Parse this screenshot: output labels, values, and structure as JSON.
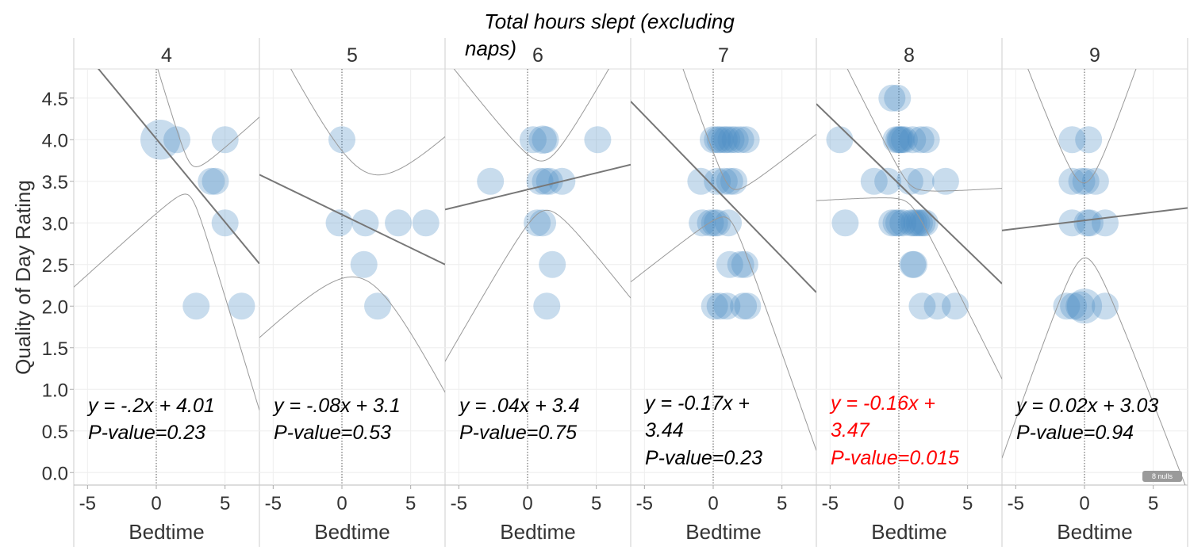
{
  "chart_data": {
    "type": "scatter",
    "title": "Total hours slept (excluding naps)",
    "xlabel": "Bedtime",
    "ylabel": "Quality of Day Rating",
    "xlim": [
      -6,
      7.5
    ],
    "ylim": [
      -0.15,
      4.85
    ],
    "x_ticks": [
      "-5",
      "0",
      "5"
    ],
    "x_tick_values": [
      -5,
      0,
      5
    ],
    "y_ticks": [
      "0.0",
      "0.5",
      "1.0",
      "1.5",
      "2.0",
      "2.5",
      "3.0",
      "3.5",
      "4.0",
      "4.5"
    ],
    "y_tick_values": [
      0,
      0.5,
      1,
      1.5,
      2,
      2.5,
      3,
      3.5,
      4,
      4.5
    ],
    "grid": true,
    "marker_color": "#4a8bc4",
    "trend_color": "#777777",
    "band_color": "#999999",
    "highlight_color": "#ff0000",
    "nulls_badge": "8 nulls",
    "facets": [
      {
        "label": "4",
        "slope": -0.2,
        "intercept": 4.01,
        "equation": "y = -.2x + 4.01",
        "pvalue": "P-value=0.23",
        "highlight": false,
        "band": {
          "mean_x": 2.5,
          "k": 0.35,
          "h": 0.2
        },
        "points": [
          {
            "x": 0.3,
            "y": 4.0,
            "size": 2.2
          },
          {
            "x": 1.5,
            "y": 4.0,
            "size": 1
          },
          {
            "x": 5.0,
            "y": 4.0,
            "size": 1
          },
          {
            "x": 4.0,
            "y": 3.5,
            "size": 1
          },
          {
            "x": 4.3,
            "y": 3.5,
            "size": 1
          },
          {
            "x": 5.0,
            "y": 3.0,
            "size": 1
          },
          {
            "x": 2.9,
            "y": 2.0,
            "size": 1
          },
          {
            "x": 6.2,
            "y": 2.0,
            "size": 1
          }
        ]
      },
      {
        "label": "5",
        "slope": -0.08,
        "intercept": 3.1,
        "equation": "y = -.08x + 3.1",
        "pvalue": "P-value=0.53",
        "highlight": false,
        "band": {
          "mean_x": 1.7,
          "k": 0.24,
          "h": 0.65
        },
        "points": [
          {
            "x": 0.0,
            "y": 4.0,
            "size": 1
          },
          {
            "x": -0.2,
            "y": 3.0,
            "size": 1
          },
          {
            "x": 1.7,
            "y": 3.0,
            "size": 1
          },
          {
            "x": 4.1,
            "y": 3.0,
            "size": 1
          },
          {
            "x": 6.1,
            "y": 3.0,
            "size": 1
          },
          {
            "x": 1.6,
            "y": 2.5,
            "size": 1
          },
          {
            "x": 2.6,
            "y": 2.0,
            "size": 1
          }
        ]
      },
      {
        "label": "6",
        "slope": 0.04,
        "intercept": 3.4,
        "equation": "y = .04x + 3.4",
        "pvalue": "P-value=0.75",
        "highlight": false,
        "band": {
          "mean_x": 1.2,
          "k": 0.25,
          "h": 0.3
        },
        "points": [
          {
            "x": 0.4,
            "y": 4.0,
            "size": 1
          },
          {
            "x": 1.1,
            "y": 4.0,
            "size": 1.1
          },
          {
            "x": 1.3,
            "y": 4.0,
            "size": 1
          },
          {
            "x": 5.1,
            "y": 4.0,
            "size": 1
          },
          {
            "x": -2.7,
            "y": 3.5,
            "size": 1
          },
          {
            "x": 0.9,
            "y": 3.5,
            "size": 1
          },
          {
            "x": 1.3,
            "y": 3.5,
            "size": 1
          },
          {
            "x": 1.6,
            "y": 3.5,
            "size": 1
          },
          {
            "x": 2.5,
            "y": 3.5,
            "size": 1
          },
          {
            "x": 0.7,
            "y": 3.0,
            "size": 1
          },
          {
            "x": 1.1,
            "y": 3.0,
            "size": 1
          },
          {
            "x": 1.8,
            "y": 2.5,
            "size": 1
          },
          {
            "x": 1.4,
            "y": 2.0,
            "size": 1
          }
        ]
      },
      {
        "label": "7",
        "slope": -0.17,
        "intercept": 3.44,
        "equation": "y = -0.17x + 3.44",
        "pvalue": "P-value=0.23",
        "highlight": false,
        "band": {
          "mean_x": 1.2,
          "k": 0.3,
          "h": 0.2
        },
        "points": [
          {
            "x": 0.0,
            "y": 4.0,
            "size": 1
          },
          {
            "x": 0.3,
            "y": 4.0,
            "size": 1
          },
          {
            "x": 0.5,
            "y": 4.0,
            "size": 1
          },
          {
            "x": 0.8,
            "y": 4.0,
            "size": 1
          },
          {
            "x": 1.0,
            "y": 4.0,
            "size": 1
          },
          {
            "x": 1.3,
            "y": 4.0,
            "size": 1
          },
          {
            "x": 1.6,
            "y": 4.0,
            "size": 1
          },
          {
            "x": 2.0,
            "y": 4.0,
            "size": 1
          },
          {
            "x": 2.4,
            "y": 4.0,
            "size": 1
          },
          {
            "x": -0.9,
            "y": 3.5,
            "size": 1
          },
          {
            "x": 0.3,
            "y": 3.5,
            "size": 1
          },
          {
            "x": 0.8,
            "y": 3.5,
            "size": 1
          },
          {
            "x": 1.2,
            "y": 3.5,
            "size": 1
          },
          {
            "x": 1.5,
            "y": 3.5,
            "size": 1
          },
          {
            "x": -0.8,
            "y": 3.0,
            "size": 1
          },
          {
            "x": -0.2,
            "y": 3.0,
            "size": 1
          },
          {
            "x": 0.1,
            "y": 3.0,
            "size": 1
          },
          {
            "x": 0.3,
            "y": 3.0,
            "size": 1
          },
          {
            "x": 1.1,
            "y": 3.0,
            "size": 1
          },
          {
            "x": 1.2,
            "y": 2.5,
            "size": 1
          },
          {
            "x": 2.0,
            "y": 2.5,
            "size": 1
          },
          {
            "x": 2.3,
            "y": 2.5,
            "size": 1
          },
          {
            "x": 0.1,
            "y": 2.0,
            "size": 1
          },
          {
            "x": 0.5,
            "y": 2.0,
            "size": 1
          },
          {
            "x": 1.0,
            "y": 2.0,
            "size": 1
          },
          {
            "x": 2.2,
            "y": 2.0,
            "size": 1
          },
          {
            "x": 2.5,
            "y": 2.0,
            "size": 1
          }
        ]
      },
      {
        "label": "8",
        "slope": -0.16,
        "intercept": 3.47,
        "equation": "y = -0.16x + 3.47",
        "pvalue": "P-value=0.015",
        "highlight": true,
        "band": {
          "mean_x": 0.8,
          "k": 0.17,
          "h": 0.12
        },
        "points": [
          {
            "x": -0.5,
            "y": 4.5,
            "size": 1
          },
          {
            "x": -0.1,
            "y": 4.5,
            "size": 1
          },
          {
            "x": -4.3,
            "y": 4.0,
            "size": 1
          },
          {
            "x": -0.2,
            "y": 4.0,
            "size": 1
          },
          {
            "x": 0.0,
            "y": 4.0,
            "size": 1
          },
          {
            "x": 0.1,
            "y": 4.0,
            "size": 1
          },
          {
            "x": 0.2,
            "y": 4.0,
            "size": 1
          },
          {
            "x": 0.4,
            "y": 4.0,
            "size": 1
          },
          {
            "x": 1.0,
            "y": 4.0,
            "size": 1
          },
          {
            "x": 1.6,
            "y": 4.0,
            "size": 1
          },
          {
            "x": 2.0,
            "y": 4.0,
            "size": 1
          },
          {
            "x": -1.8,
            "y": 3.5,
            "size": 1
          },
          {
            "x": -0.8,
            "y": 3.5,
            "size": 1
          },
          {
            "x": 0.8,
            "y": 3.5,
            "size": 1
          },
          {
            "x": 1.6,
            "y": 3.5,
            "size": 1
          },
          {
            "x": 3.4,
            "y": 3.5,
            "size": 1
          },
          {
            "x": -3.9,
            "y": 3.0,
            "size": 1
          },
          {
            "x": -0.5,
            "y": 3.0,
            "size": 1
          },
          {
            "x": -0.2,
            "y": 3.0,
            "size": 1
          },
          {
            "x": 0.0,
            "y": 3.0,
            "size": 1
          },
          {
            "x": 0.3,
            "y": 3.0,
            "size": 1
          },
          {
            "x": 0.9,
            "y": 3.0,
            "size": 1
          },
          {
            "x": 1.1,
            "y": 3.0,
            "size": 1
          },
          {
            "x": 1.3,
            "y": 3.0,
            "size": 1
          },
          {
            "x": 1.5,
            "y": 3.0,
            "size": 1
          },
          {
            "x": 1.7,
            "y": 3.0,
            "size": 1
          },
          {
            "x": 1.9,
            "y": 3.0,
            "size": 1
          },
          {
            "x": 1.0,
            "y": 2.5,
            "size": 1
          },
          {
            "x": 1.1,
            "y": 2.5,
            "size": 1
          },
          {
            "x": 1.7,
            "y": 2.0,
            "size": 1
          },
          {
            "x": 2.8,
            "y": 2.0,
            "size": 1
          },
          {
            "x": 4.1,
            "y": 2.0,
            "size": 1
          }
        ]
      },
      {
        "label": "9",
        "slope": 0.02,
        "intercept": 3.03,
        "equation": "y = 0.02x + 3.03",
        "pvalue": "P-value=0.94",
        "highlight": false,
        "band": {
          "mean_x": 0.0,
          "k": 0.45,
          "h": 0.45
        },
        "points": [
          {
            "x": -0.9,
            "y": 4.0,
            "size": 1
          },
          {
            "x": 0.3,
            "y": 4.0,
            "size": 1
          },
          {
            "x": -0.9,
            "y": 3.5,
            "size": 1
          },
          {
            "x": -0.2,
            "y": 3.5,
            "size": 1
          },
          {
            "x": 0.1,
            "y": 3.5,
            "size": 1
          },
          {
            "x": 0.8,
            "y": 3.5,
            "size": 1
          },
          {
            "x": -0.9,
            "y": 3.0,
            "size": 1
          },
          {
            "x": 0.2,
            "y": 3.0,
            "size": 1
          },
          {
            "x": 0.4,
            "y": 3.0,
            "size": 1
          },
          {
            "x": 1.5,
            "y": 3.0,
            "size": 1
          },
          {
            "x": -1.3,
            "y": 2.0,
            "size": 1
          },
          {
            "x": -0.8,
            "y": 2.0,
            "size": 1
          },
          {
            "x": -0.3,
            "y": 2.0,
            "size": 1.2
          },
          {
            "x": 0.0,
            "y": 2.0,
            "size": 1.7
          },
          {
            "x": 1.5,
            "y": 2.0,
            "size": 1
          }
        ]
      }
    ]
  }
}
